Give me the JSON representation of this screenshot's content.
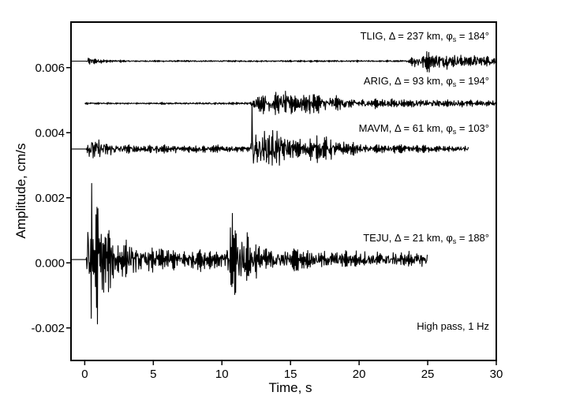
{
  "chart_data": {
    "type": "line",
    "title": "",
    "xlabel": "Time, s",
    "ylabel": "Amplitude, cm/s",
    "xlim": [
      -1,
      30
    ],
    "ylim": [
      -0.003,
      0.0074
    ],
    "xticks": [
      0,
      5,
      10,
      15,
      20,
      25,
      30
    ],
    "xtick_labels": [
      "0",
      "5",
      "10",
      "15",
      "20",
      "25",
      "30"
    ],
    "yticks": [
      0.006,
      0.004,
      0.002,
      0.0,
      -0.002
    ],
    "ytick_labels": [
      "0.006",
      "0.004",
      "0.002",
      "0.000",
      "-0.002"
    ],
    "grid": false,
    "annotation": "High pass, 1 Hz",
    "line_color": "#000000",
    "series": [
      {
        "name": "TLIG",
        "delta": "Δ = 237 km",
        "phi_value": "= 184°",
        "baseline": 0.0062,
        "t_start": -1,
        "t_end": 30,
        "envelope": [
          [
            -1,
            0
          ],
          [
            0.1,
            0
          ],
          [
            0.25,
            0.00016
          ],
          [
            1,
            8e-05
          ],
          [
            3,
            3e-05
          ],
          [
            23.5,
            3e-05
          ],
          [
            24.3,
            0.00032
          ],
          [
            25.5,
            0.0003
          ],
          [
            30,
            0.00018
          ]
        ],
        "spikes": []
      },
      {
        "name": "ARIG",
        "delta": "Δ = 93 km",
        "phi_value": "= 194°",
        "baseline": 0.0049,
        "t_start": 0,
        "t_end": 30,
        "envelope": [
          [
            0,
            3e-05
          ],
          [
            12,
            4e-05
          ],
          [
            12.8,
            0.00032
          ],
          [
            15,
            0.0004
          ],
          [
            16,
            0.00035
          ],
          [
            20,
            0.00016
          ],
          [
            30,
            0.0001
          ]
        ],
        "spikes": []
      },
      {
        "name": "MAVM",
        "delta": "Δ = 61 km",
        "phi_value": "= 103°",
        "baseline": 0.0035,
        "t_start": -1,
        "t_end": 28,
        "envelope": [
          [
            -1,
            0
          ],
          [
            0.1,
            0
          ],
          [
            0.4,
            0.0005
          ],
          [
            1.5,
            0.0003
          ],
          [
            3,
            0.00015
          ],
          [
            12,
            0.0001
          ],
          [
            12.3,
            0.0007
          ],
          [
            13,
            0.0006
          ],
          [
            14,
            0.0007
          ],
          [
            15,
            0.0003
          ],
          [
            17,
            0.0004
          ],
          [
            20,
            0.00015
          ],
          [
            28,
            0.0001
          ]
        ],
        "spikes": [
          [
            12.2,
            0.0014
          ]
        ]
      },
      {
        "name": "TEJU",
        "delta": "Δ = 21 km",
        "phi_value": "= 188°",
        "baseline": 0.0001,
        "t_start": -1,
        "t_end": 25,
        "envelope": [
          [
            -1,
            0
          ],
          [
            0.1,
            0
          ],
          [
            0.3,
            0.0026
          ],
          [
            1,
            0.0018
          ],
          [
            2,
            0.0008
          ],
          [
            4,
            0.0004
          ],
          [
            10.3,
            0.0003
          ],
          [
            10.6,
            0.0017
          ],
          [
            11.5,
            0.0009
          ],
          [
            13,
            0.0005
          ],
          [
            15,
            0.0003
          ],
          [
            25,
            0.00025
          ]
        ],
        "spikes": []
      }
    ]
  }
}
